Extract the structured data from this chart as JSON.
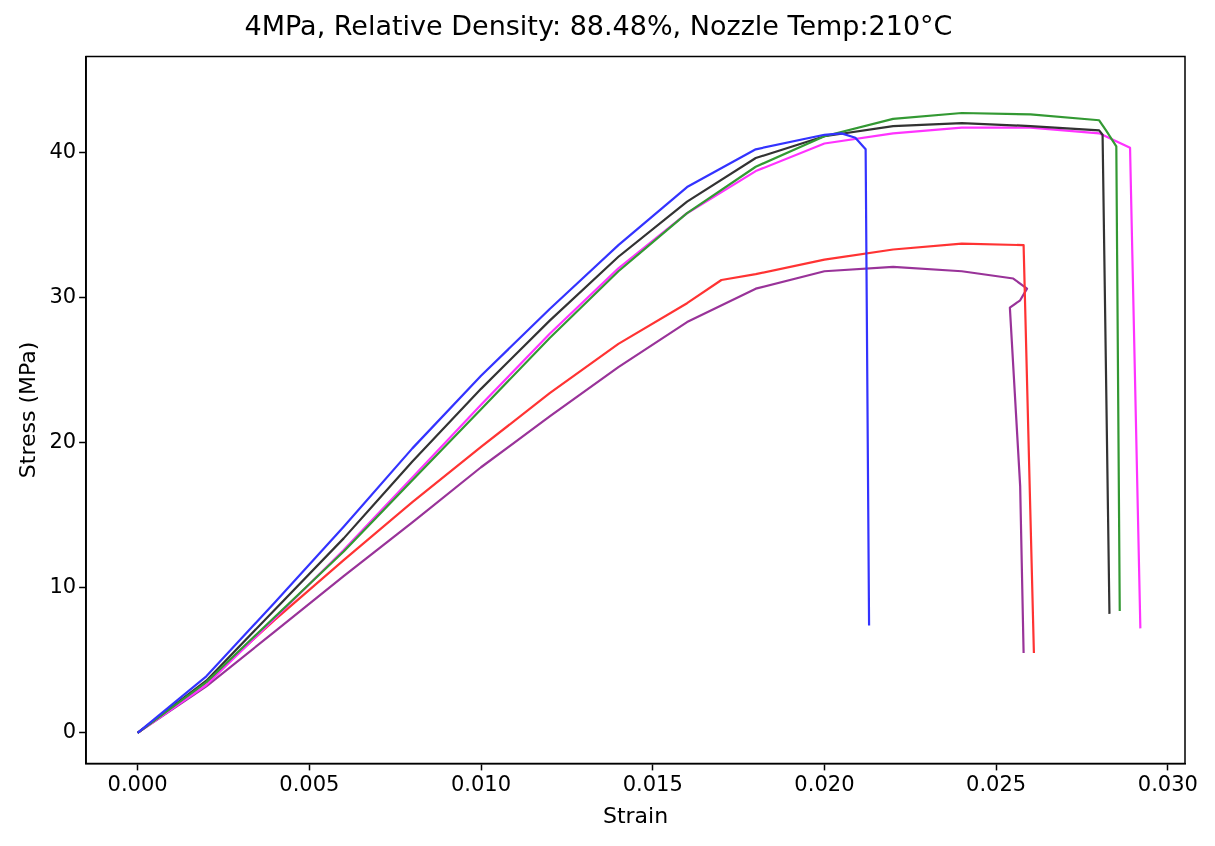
{
  "chart_data": {
    "type": "line",
    "title": "4MPa, Relative Density: 88.48%, Nozzle Temp:210°C",
    "xlabel": "Strain",
    "ylabel": "Stress (MPa)",
    "xlim": [
      -0.0015,
      0.0305
    ],
    "ylim": [
      -2.1,
      46.6
    ],
    "xticks": [
      {
        "value": 0,
        "label": "0.000"
      },
      {
        "value": 0.005,
        "label": "0.005"
      },
      {
        "value": 0.01,
        "label": "0.010"
      },
      {
        "value": 0.015,
        "label": "0.015"
      },
      {
        "value": 0.02,
        "label": "0.020"
      },
      {
        "value": 0.025,
        "label": "0.025"
      },
      {
        "value": 0.03,
        "label": "0.030"
      }
    ],
    "yticks": [
      0,
      10,
      20,
      30,
      40
    ],
    "grid": false,
    "legend": false,
    "marker": "none",
    "line_style": "solid",
    "series": [
      {
        "color": "#3333ff",
        "x": [
          0,
          0.002,
          0.004,
          0.006,
          0.008,
          0.01,
          0.012,
          0.014,
          0.016,
          0.018,
          0.02,
          0.0205,
          0.0209,
          0.0212,
          0.0213
        ],
        "values": [
          0,
          3.9,
          9.0,
          14.2,
          19.6,
          24.6,
          29.2,
          33.6,
          37.6,
          40.2,
          41.2,
          41.3,
          41.0,
          40.2,
          7.4
        ]
      },
      {
        "color": "#339933",
        "x": [
          0,
          0.002,
          0.004,
          0.006,
          0.008,
          0.01,
          0.012,
          0.014,
          0.016,
          0.018,
          0.02,
          0.022,
          0.024,
          0.026,
          0.028,
          0.0282,
          0.0285,
          0.0286
        ],
        "values": [
          0,
          3.5,
          8.0,
          12.5,
          17.4,
          22.3,
          27.2,
          31.8,
          35.8,
          39.0,
          41.1,
          42.3,
          42.7,
          42.6,
          42.2,
          41.5,
          40.4,
          8.4
        ]
      },
      {
        "color": "#333333",
        "x": [
          0,
          0.002,
          0.004,
          0.006,
          0.008,
          0.01,
          0.012,
          0.014,
          0.016,
          0.018,
          0.02,
          0.022,
          0.024,
          0.026,
          0.028,
          0.0281,
          0.0283
        ],
        "values": [
          0,
          3.6,
          8.5,
          13.4,
          18.7,
          23.7,
          28.4,
          32.8,
          36.6,
          39.6,
          41.1,
          41.8,
          42.0,
          41.8,
          41.5,
          41.2,
          8.2
        ]
      },
      {
        "color": "#ff33ff",
        "x": [
          0,
          0.002,
          0.004,
          0.006,
          0.008,
          0.01,
          0.012,
          0.014,
          0.016,
          0.018,
          0.02,
          0.022,
          0.024,
          0.026,
          0.028,
          0.0289,
          0.0292
        ],
        "values": [
          0,
          3.3,
          7.9,
          12.6,
          17.6,
          22.6,
          27.5,
          32.0,
          35.8,
          38.7,
          40.6,
          41.3,
          41.7,
          41.7,
          41.3,
          40.3,
          7.2
        ]
      },
      {
        "color": "#ff3333",
        "x": [
          0,
          0.002,
          0.004,
          0.006,
          0.008,
          0.01,
          0.012,
          0.014,
          0.016,
          0.017,
          0.018,
          0.02,
          0.022,
          0.024,
          0.0258,
          0.0261
        ],
        "values": [
          0,
          3.5,
          7.8,
          11.9,
          15.9,
          19.7,
          23.4,
          26.8,
          29.6,
          31.2,
          31.6,
          32.6,
          33.3,
          33.7,
          33.6,
          5.5
        ]
      },
      {
        "color": "#993399",
        "x": [
          0,
          0.002,
          0.004,
          0.006,
          0.008,
          0.01,
          0.012,
          0.014,
          0.016,
          0.018,
          0.02,
          0.022,
          0.024,
          0.0255,
          0.0259,
          0.0257,
          0.0254,
          0.0257,
          0.0258
        ],
        "values": [
          0,
          3.2,
          7.0,
          10.8,
          14.5,
          18.3,
          21.8,
          25.2,
          28.3,
          30.6,
          31.8,
          32.1,
          31.8,
          31.3,
          30.6,
          29.8,
          29.3,
          17.0,
          5.5
        ]
      }
    ]
  }
}
